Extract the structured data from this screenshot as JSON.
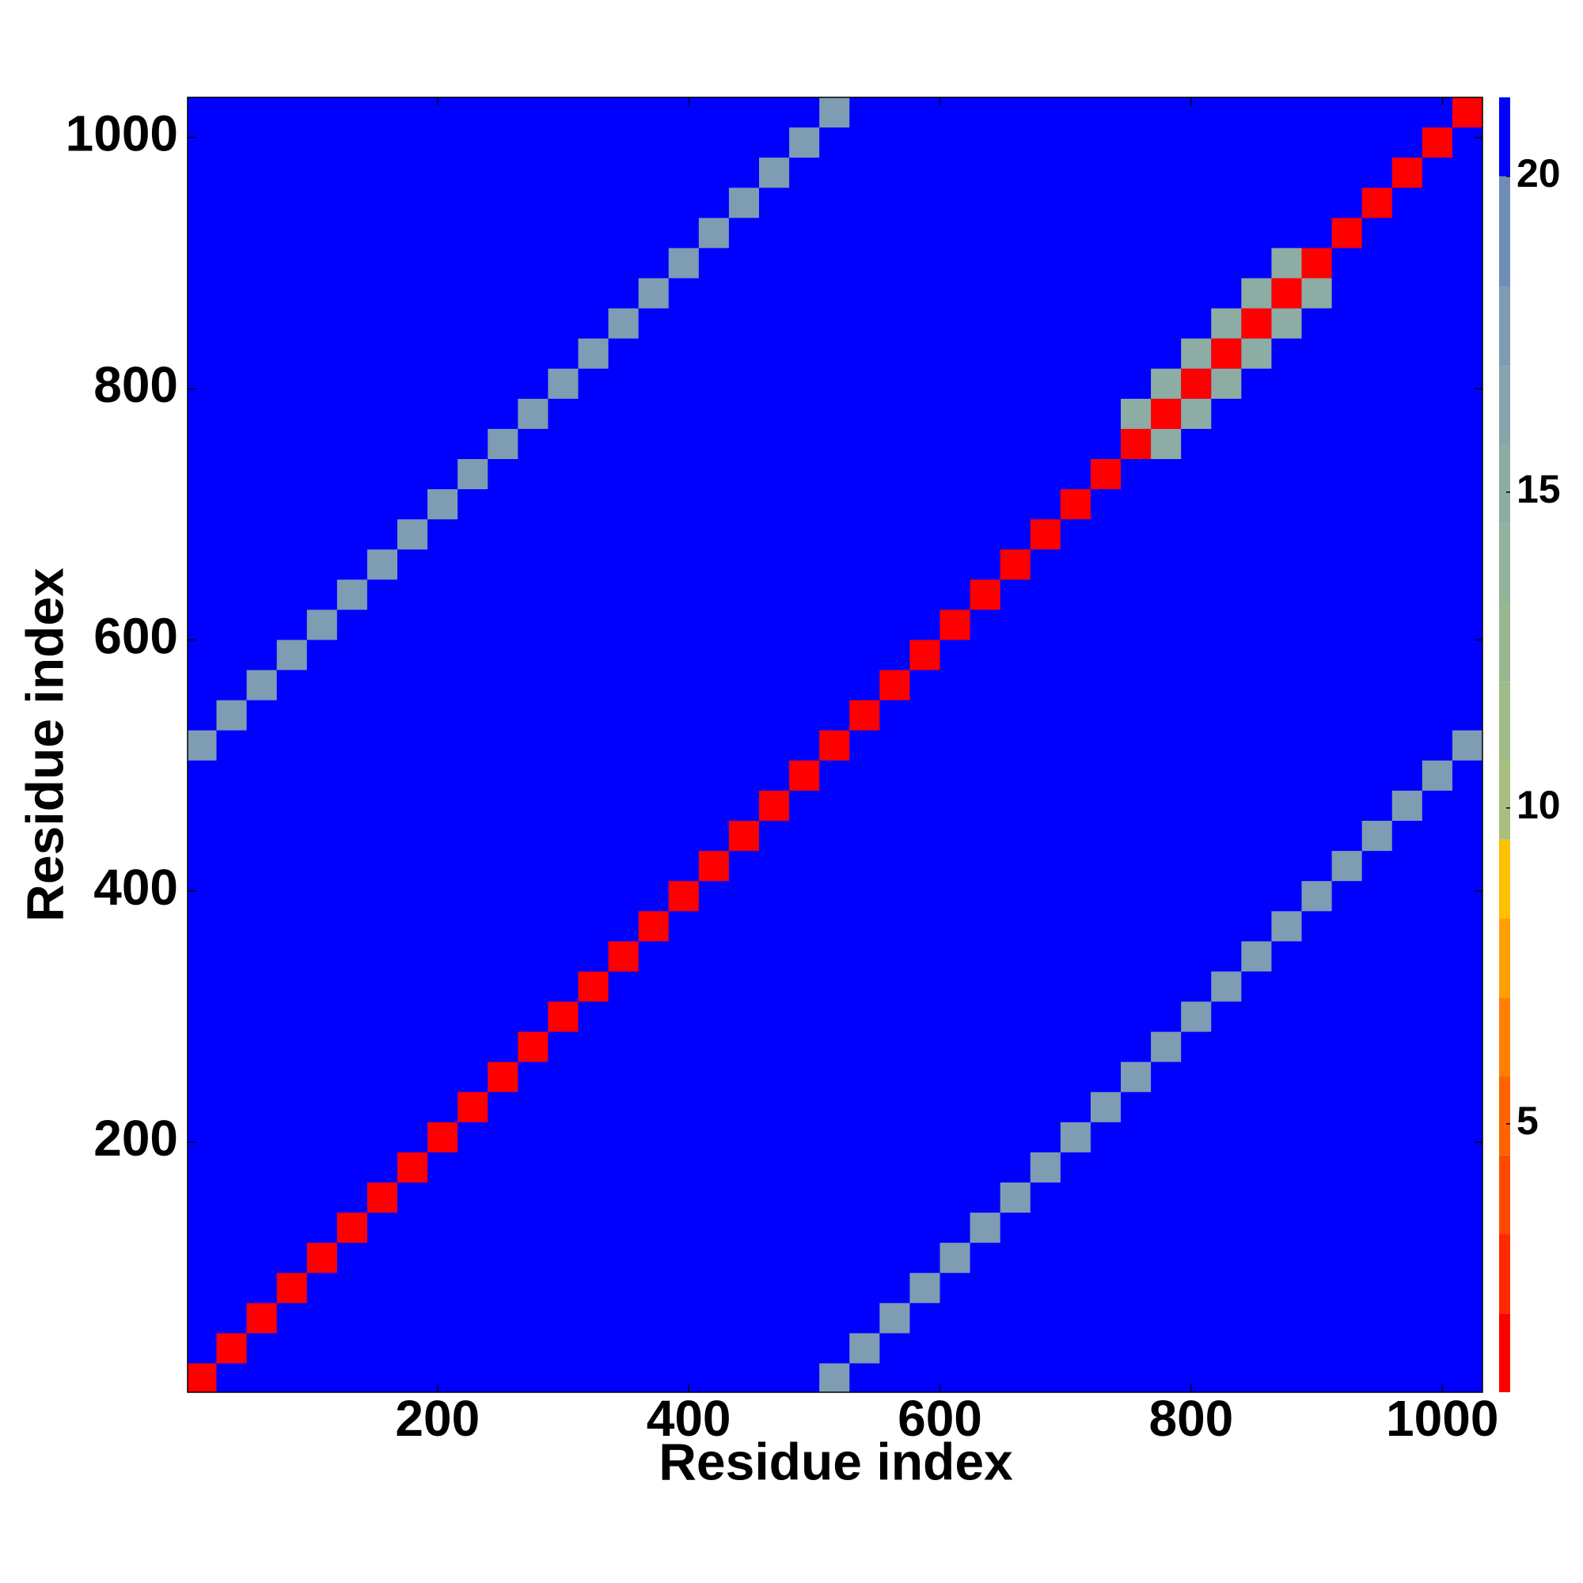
{
  "chart_data": {
    "type": "heatmap",
    "x_label": "Residue index",
    "y_label": "Residue index",
    "xlim": [
      1,
      1032
    ],
    "ylim": [
      1,
      1032
    ],
    "xticks": [
      200,
      400,
      600,
      800,
      1000
    ],
    "yticks": [
      200,
      400,
      600,
      800,
      1000
    ],
    "x": [
      12,
      36,
      60,
      84,
      108,
      132,
      156,
      180,
      204,
      228,
      252,
      276,
      300,
      324,
      348,
      372,
      396,
      420,
      444,
      468,
      492,
      516,
      540,
      564,
      588,
      612,
      636,
      660,
      684,
      708,
      732,
      756,
      780,
      804,
      828,
      852,
      876,
      900,
      924,
      948,
      972,
      996,
      1020,
      756,
      780,
      780,
      804,
      804,
      828,
      828,
      852,
      852,
      876,
      876,
      900,
      12,
      36,
      60,
      84,
      108,
      132,
      156,
      180,
      204,
      228,
      252,
      276,
      300,
      324,
      348,
      372,
      396,
      420,
      444,
      468,
      492,
      516,
      516,
      540,
      564,
      588,
      612,
      636,
      660,
      684,
      708,
      732,
      756,
      780,
      804,
      828,
      852,
      876,
      900,
      924,
      948,
      972,
      996,
      1020
    ],
    "y": [
      12,
      36,
      60,
      84,
      108,
      132,
      156,
      180,
      204,
      228,
      252,
      276,
      300,
      324,
      348,
      372,
      396,
      420,
      444,
      468,
      492,
      516,
      540,
      564,
      588,
      612,
      636,
      660,
      684,
      708,
      732,
      756,
      780,
      804,
      828,
      852,
      876,
      900,
      924,
      948,
      972,
      996,
      1020,
      780,
      756,
      804,
      780,
      828,
      804,
      852,
      828,
      876,
      852,
      900,
      876,
      516,
      540,
      564,
      588,
      612,
      636,
      660,
      684,
      708,
      732,
      756,
      780,
      804,
      828,
      852,
      876,
      900,
      924,
      948,
      972,
      996,
      1020,
      12,
      36,
      60,
      84,
      108,
      132,
      156,
      180,
      204,
      228,
      252,
      276,
      300,
      324,
      348,
      372,
      396,
      420,
      444,
      468,
      492,
      516
    ],
    "values": [
      1.5,
      1.5,
      1.5,
      1.5,
      1.5,
      1.5,
      1.5,
      1.5,
      1.5,
      1.5,
      1.5,
      1.5,
      1.5,
      1.5,
      1.5,
      1.5,
      1.5,
      1.5,
      1.5,
      1.5,
      1.5,
      1.5,
      1.5,
      1.5,
      1.5,
      1.5,
      1.5,
      1.5,
      1.5,
      1.5,
      1.5,
      1.5,
      1.5,
      1.5,
      1.5,
      1.5,
      1.5,
      1.5,
      1.5,
      1.5,
      1.5,
      1.5,
      1.5,
      15,
      15,
      15,
      15,
      15,
      15,
      15,
      15,
      15,
      15,
      15,
      15,
      17,
      17,
      17,
      17,
      17,
      17,
      17,
      17,
      17,
      17,
      17,
      17,
      17,
      17,
      17,
      17,
      17,
      17,
      17,
      17,
      17,
      17,
      17,
      17,
      17,
      17,
      17,
      17,
      17,
      17,
      17,
      17,
      17,
      17,
      17,
      17,
      17,
      17,
      17,
      17,
      17,
      17,
      17,
      17
    ],
    "colorbar": {
      "levels": [
        0.75,
        2,
        3.25,
        4.5,
        5.75,
        7,
        8.25,
        9.5,
        10.75,
        12,
        13.25,
        14.5,
        15.75,
        17,
        18.25,
        20,
        21.25
      ],
      "colors": [
        "#ff0000",
        "#ff2a00",
        "#ff4a00",
        "#ff6400",
        "#ff8000",
        "#ffa000",
        "#ffc000",
        "#a8bf80",
        "#a0bb88",
        "#98b690",
        "#92b29a",
        "#8caca4",
        "#86a4ac",
        "#7e9cb2",
        "#6e8cb6",
        "#0000ff"
      ],
      "ticks": [
        5,
        10,
        15,
        20
      ]
    }
  }
}
